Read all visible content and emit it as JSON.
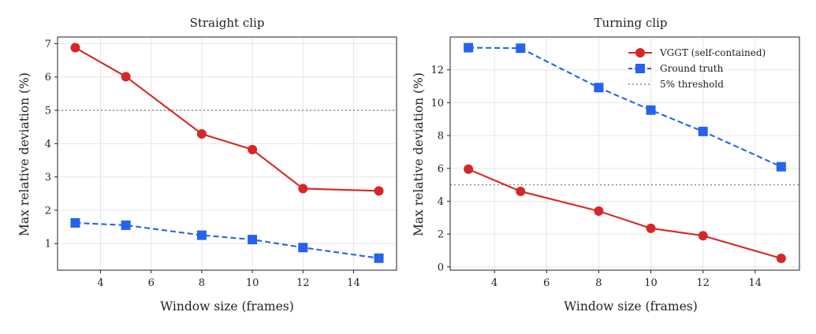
{
  "chart_data": [
    {
      "type": "line",
      "title": "Straight clip",
      "xlabel": "Window size (frames)",
      "ylabel": "Max relative deviation (%)",
      "x": [
        3,
        5,
        8,
        10,
        12,
        15
      ],
      "xlim": [
        2.3,
        15.7
      ],
      "ylim": [
        0.2,
        7.2
      ],
      "xticks": [
        4,
        6,
        8,
        10,
        12,
        14
      ],
      "yticks": [
        1,
        2,
        3,
        4,
        5,
        6,
        7
      ],
      "grid": true,
      "series": [
        {
          "name": "VGGT (self-contained)",
          "values": [
            6.88,
            6.01,
            4.29,
            3.82,
            2.65,
            2.58
          ],
          "color": "#d62728",
          "marker": "circle",
          "linestyle": "solid"
        },
        {
          "name": "Ground truth",
          "values": [
            1.62,
            1.55,
            1.25,
            1.12,
            0.88,
            0.56
          ],
          "color": "#2563eb",
          "marker": "square",
          "linestyle": "dashed"
        }
      ],
      "threshold": {
        "name": "5% threshold",
        "value": 5,
        "color": "#888888",
        "linestyle": "dotted"
      }
    },
    {
      "type": "line",
      "title": "Turning clip",
      "xlabel": "Window size (frames)",
      "ylabel": "Max relative deviation (%)",
      "x": [
        3,
        5,
        8,
        10,
        12,
        15
      ],
      "xlim": [
        2.3,
        15.7
      ],
      "ylim": [
        -0.2,
        14.0
      ],
      "xticks": [
        4,
        6,
        8,
        10,
        12,
        14
      ],
      "yticks": [
        0,
        2,
        4,
        6,
        8,
        10,
        12
      ],
      "grid": true,
      "legend": "top-right",
      "series": [
        {
          "name": "VGGT (self-contained)",
          "values": [
            5.95,
            4.6,
            3.4,
            2.35,
            1.9,
            0.52
          ],
          "color": "#d62728",
          "marker": "circle",
          "linestyle": "solid"
        },
        {
          "name": "Ground truth",
          "values": [
            13.35,
            13.32,
            10.92,
            9.55,
            8.25,
            6.1
          ],
          "color": "#2563eb",
          "marker": "square",
          "linestyle": "dashed"
        }
      ],
      "threshold": {
        "name": "5% threshold",
        "value": 5,
        "color": "#888888",
        "linestyle": "dotted"
      }
    }
  ]
}
